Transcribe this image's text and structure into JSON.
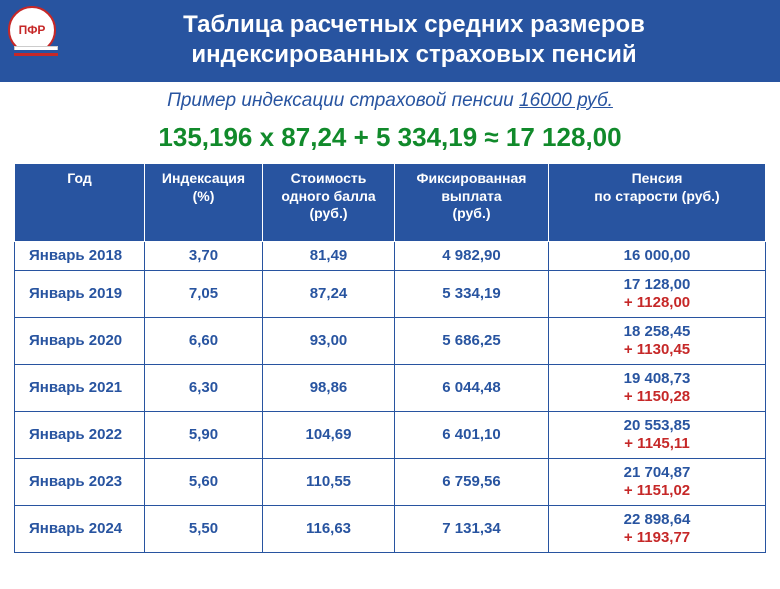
{
  "header": {
    "title_line1": "Таблица расчетных средних размеров",
    "title_line2": "индексированных страховых пенсий"
  },
  "subtitle": {
    "prefix": "Пример индексации страховой пенсии ",
    "amount": "16000 руб."
  },
  "formula": "135,196 х 87,24 + 5 334,19 ≈ 17 128,00",
  "columns": {
    "year": "Год",
    "index": "Индексация\n(%)",
    "ball": "Стоимость\nодного балла\n(руб.)",
    "fixed": "Фиксированная\nвыплата\n(руб.)",
    "pension": "Пенсия\nпо старости (руб.)"
  },
  "rows": [
    {
      "year": "Январь 2018",
      "index": "3,70",
      "ball": "81,49",
      "fixed": "4 982,90",
      "pension": "16 000,00",
      "delta": ""
    },
    {
      "year": "Январь 2019",
      "index": "7,05",
      "ball": "87,24",
      "fixed": "5 334,19",
      "pension": "17 128,00",
      "delta": "+ 1128,00"
    },
    {
      "year": "Январь 2020",
      "index": "6,60",
      "ball": "93,00",
      "fixed": "5 686,25",
      "pension": "18 258,45",
      "delta": "+ 1130,45"
    },
    {
      "year": "Январь 2021",
      "index": "6,30",
      "ball": "98,86",
      "fixed": "6 044,48",
      "pension": "19 408,73",
      "delta": "+ 1150,28"
    },
    {
      "year": "Январь 2022",
      "index": "5,90",
      "ball": "104,69",
      "fixed": "6 401,10",
      "pension": "20 553,85",
      "delta": "+ 1145,11"
    },
    {
      "year": "Январь 2023",
      "index": "5,60",
      "ball": "110,55",
      "fixed": "6 759,56",
      "pension": "21 704,87",
      "delta": "+ 1151,02"
    },
    {
      "year": "Январь 2024",
      "index": "5,50",
      "ball": "116,63",
      "fixed": "7 131,34",
      "pension": "22 898,64",
      "delta": "+ 1193,77"
    }
  ],
  "colors": {
    "brand_blue": "#2854a0",
    "accent_green": "#118a2b",
    "accent_red": "#c62828",
    "white": "#ffffff"
  }
}
